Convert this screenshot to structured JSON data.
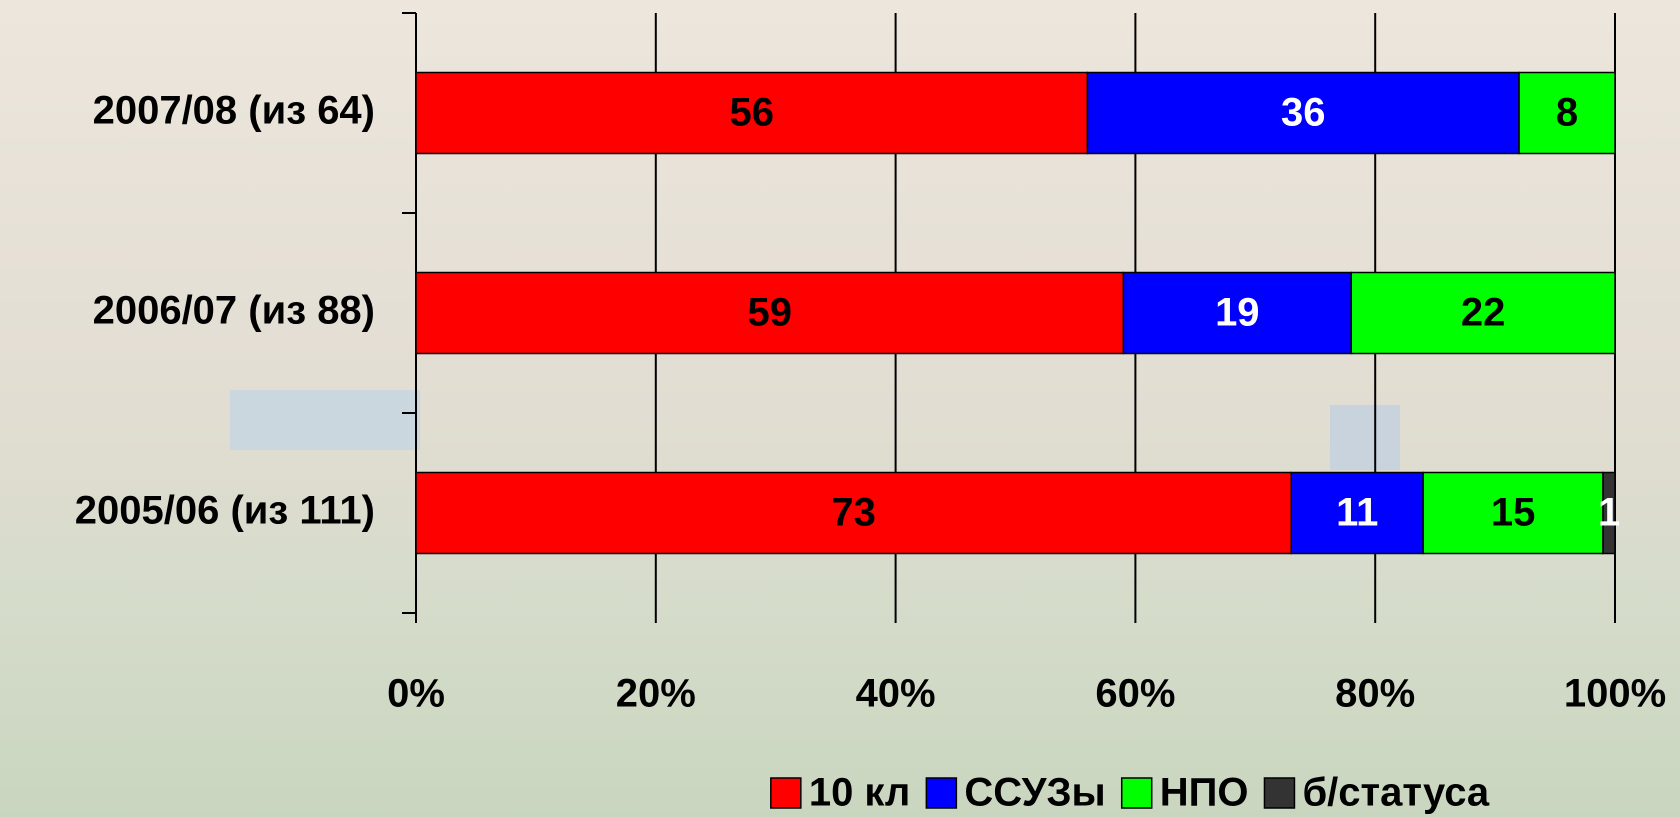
{
  "chart_data": {
    "type": "stacked-bar-horizontal",
    "categories": [
      "2007/08 (из 64)",
      "2006/07 (из 88)",
      "2005/06 (из 111)"
    ],
    "series": [
      {
        "name": "10 кл",
        "color": "#ff0000",
        "values": [
          56,
          59,
          73
        ]
      },
      {
        "name": "ССУЗы",
        "color": "#0000ff",
        "values": [
          36,
          19,
          11
        ]
      },
      {
        "name": "НПО",
        "color": "#00ff00",
        "values": [
          8,
          22,
          15
        ]
      },
      {
        "name": "б/статуса",
        "color": "#333333",
        "values": [
          null,
          null,
          1
        ]
      }
    ],
    "xlim": [
      0,
      100
    ],
    "xticks": [
      {
        "value": 0,
        "label": "0%"
      },
      {
        "value": 20,
        "label": "20%"
      },
      {
        "value": 40,
        "label": "40%"
      },
      {
        "value": 60,
        "label": "60%"
      },
      {
        "value": 80,
        "label": "80%"
      },
      {
        "value": 100,
        "label": "100%"
      }
    ],
    "grid": true,
    "legend": "bottom"
  }
}
